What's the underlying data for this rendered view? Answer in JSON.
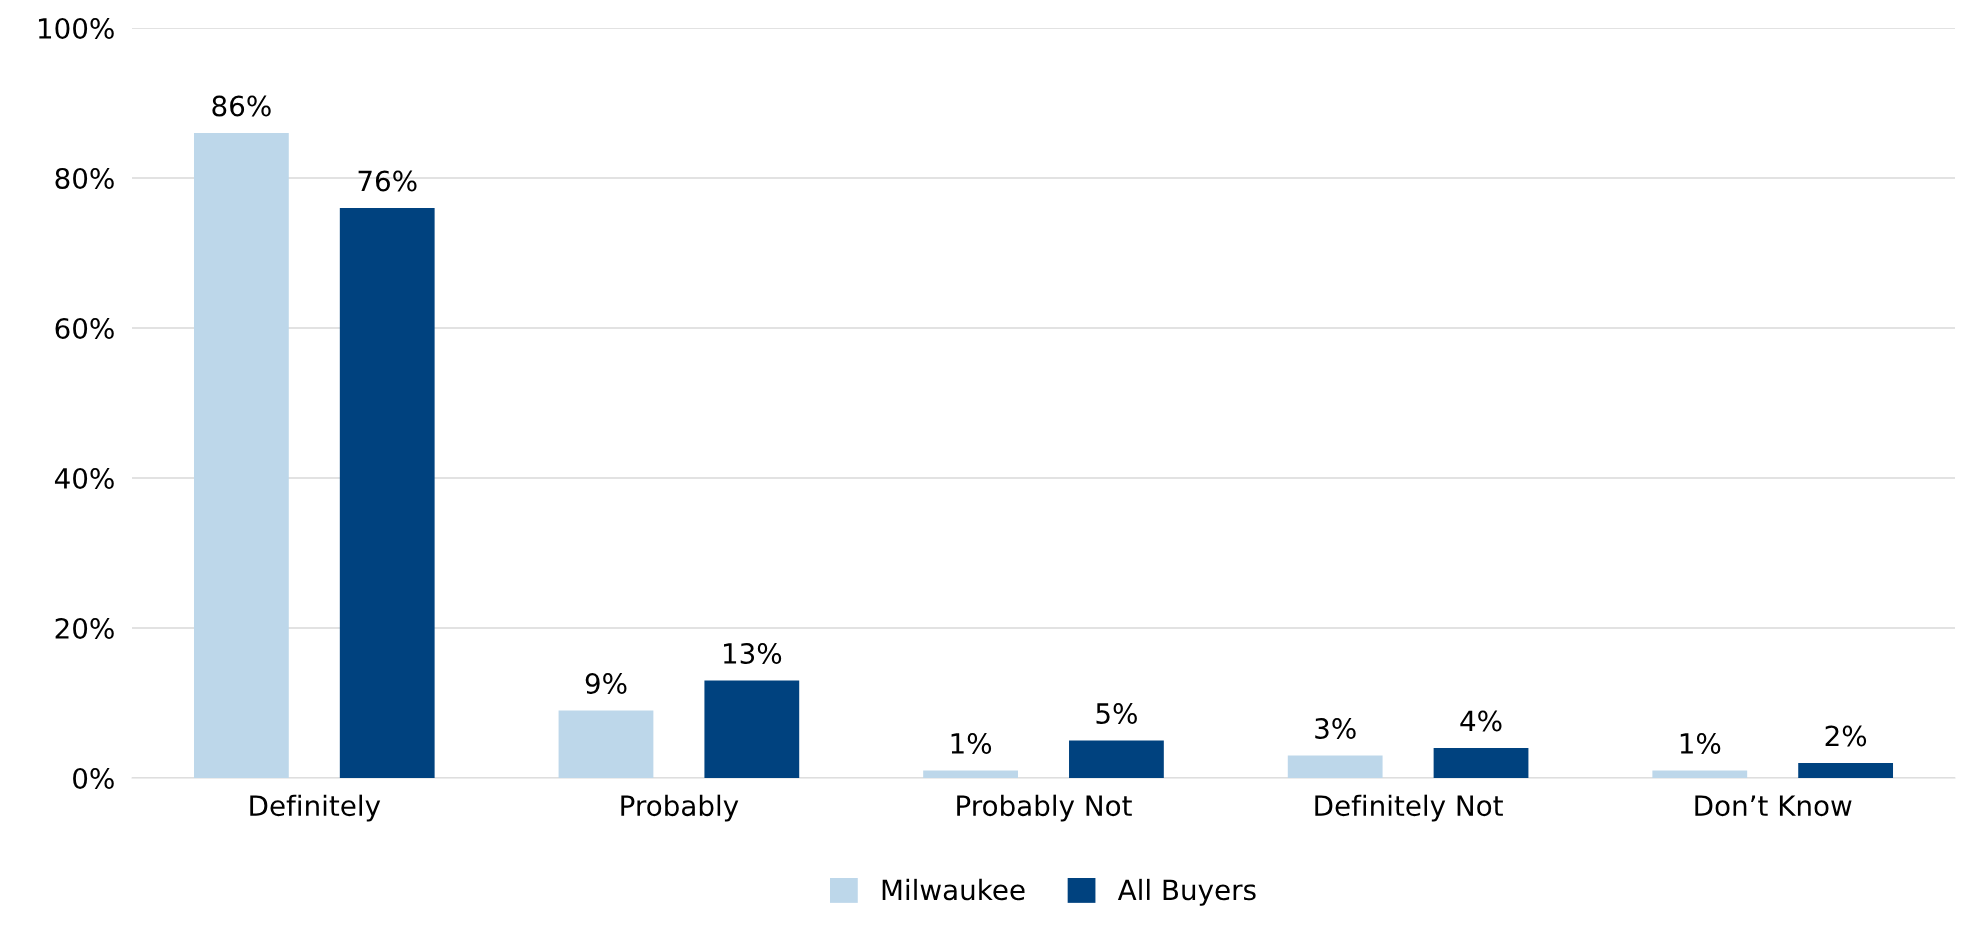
{
  "chart_data": {
    "type": "bar",
    "categories": [
      "Definitely",
      "Probably",
      "Probably Not",
      "Definitely Not",
      "Don’t Know"
    ],
    "series": [
      {
        "name": "Milwaukee",
        "color": "#bdd7ea",
        "values": [
          86,
          9,
          1,
          3,
          1
        ]
      },
      {
        "name": "All Buyers",
        "color": "#00427f",
        "values": [
          76,
          13,
          5,
          4,
          2
        ]
      }
    ],
    "ylim": [
      0,
      100
    ],
    "yticks": [
      {
        "value": 0,
        "label": "0%"
      },
      {
        "value": 20,
        "label": "20%"
      },
      {
        "value": 40,
        "label": "40%"
      },
      {
        "value": 60,
        "label": "60%"
      },
      {
        "value": 80,
        "label": "80%"
      },
      {
        "value": 100,
        "label": "100%"
      }
    ],
    "grid": "y",
    "legend": "bottom",
    "value_labels": [
      [
        "86%",
        "9%",
        "1%",
        "3%",
        "1%"
      ],
      [
        "76%",
        "13%",
        "5%",
        "4%",
        "2%"
      ]
    ]
  }
}
